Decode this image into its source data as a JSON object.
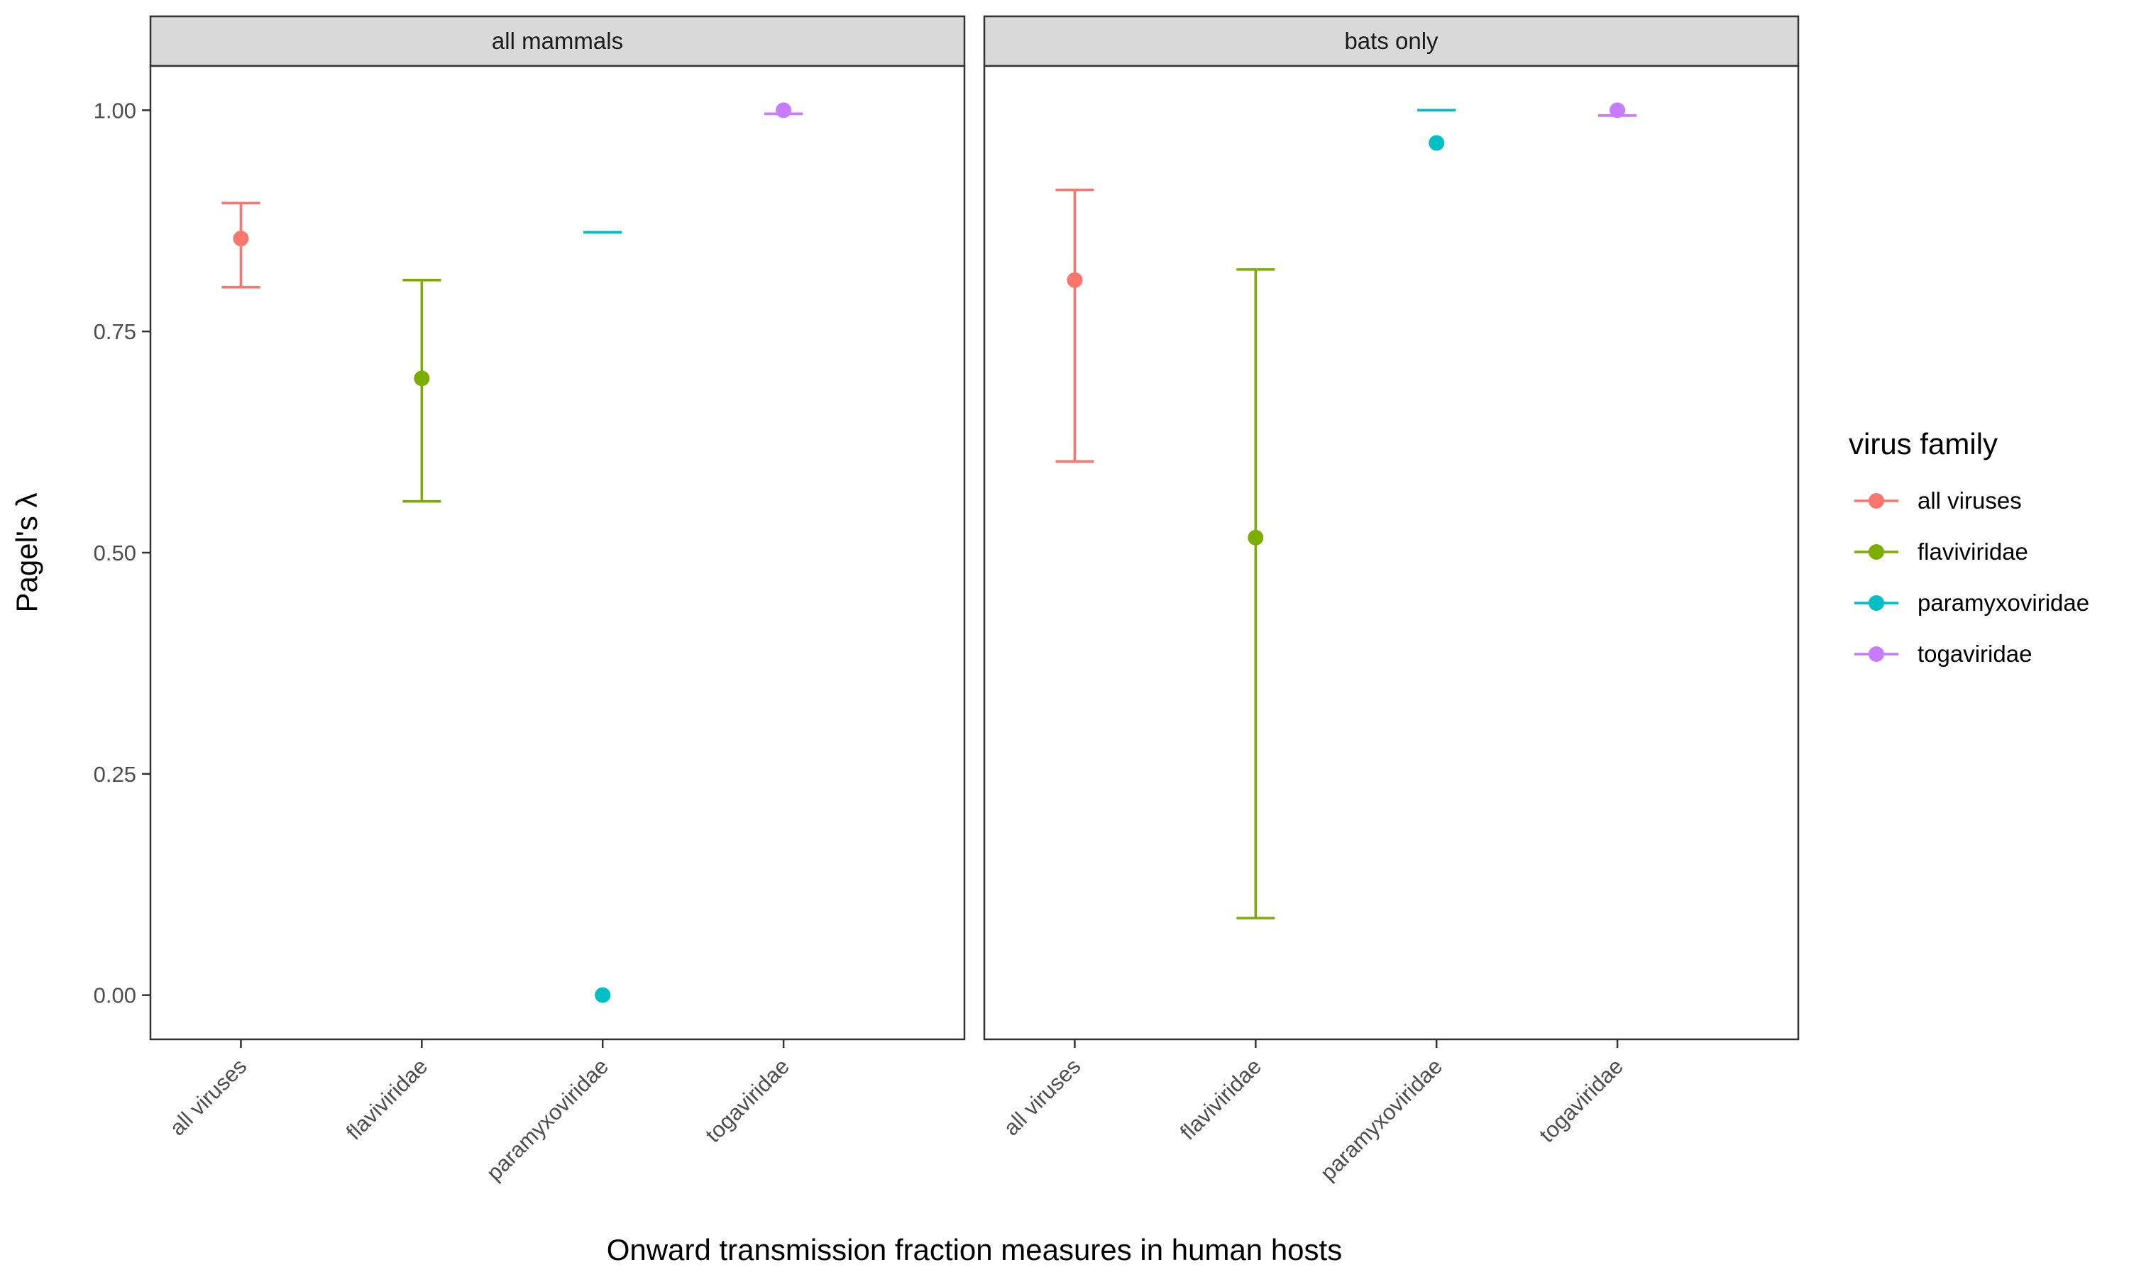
{
  "chart_data": {
    "type": "scatter",
    "xlabel": "Onward transmission fraction measures in human hosts",
    "ylabel": "Pagel's λ",
    "ylim": [
      -0.05,
      1.05
    ],
    "yticks": [
      "0.00",
      "0.25",
      "0.50",
      "0.75",
      "1.00"
    ],
    "ytick_values": [
      0,
      0.25,
      0.5,
      0.75,
      1.0
    ],
    "categories": [
      "all viruses",
      "flaviviridae",
      "paramyxoviridae",
      "togaviridae"
    ],
    "legend": {
      "title": "virus family",
      "position": "right",
      "entries": [
        "all viruses",
        "flaviviridae",
        "paramyxoviridae",
        "togaviridae"
      ]
    },
    "colors": [
      "#F8766D",
      "#7CAE00",
      "#00BFC4",
      "#C77CFF"
    ],
    "grid": false,
    "panels": [
      {
        "label": "all mammals",
        "points": [
          {
            "category": "all viruses",
            "y": 0.855,
            "lower": 0.8,
            "upper": 0.895
          },
          {
            "category": "flaviviridae",
            "y": 0.697,
            "lower": 0.558,
            "upper": 0.808
          },
          {
            "category": "paramyxoviridae",
            "y": 0.0,
            "lower": 0.862,
            "upper": 0.862
          },
          {
            "category": "togaviridae",
            "y": 1.0,
            "lower": 0.996,
            "upper": 0.996
          }
        ]
      },
      {
        "label": "bats only",
        "points": [
          {
            "category": "all viruses",
            "y": 0.808,
            "lower": 0.603,
            "upper": 0.91
          },
          {
            "category": "flaviviridae",
            "y": 0.517,
            "lower": 0.087,
            "upper": 0.82
          },
          {
            "category": "paramyxoviridae",
            "y": 0.963,
            "lower": 1.0,
            "upper": 1.0
          },
          {
            "category": "togaviridae",
            "y": 1.0,
            "lower": 0.994,
            "upper": 0.994
          }
        ]
      }
    ]
  }
}
